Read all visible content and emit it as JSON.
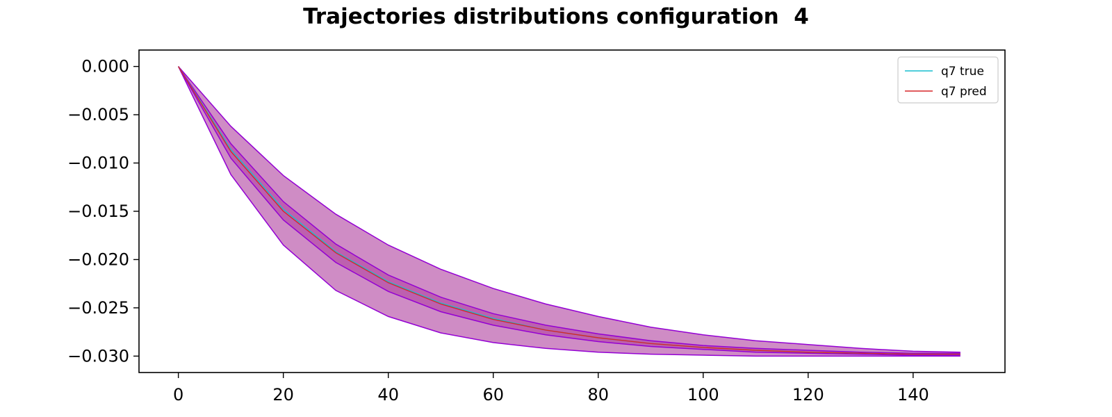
{
  "chart_data": {
    "type": "line",
    "title": "Trajectories distributions configuration  4",
    "xlabel": "",
    "ylabel": "",
    "xlim": [
      -7.5,
      157.5
    ],
    "ylim": [
      -0.0317,
      0.0017
    ],
    "x_ticks": [
      0,
      20,
      40,
      60,
      80,
      100,
      120,
      140
    ],
    "x_tick_labels": [
      "0",
      "20",
      "40",
      "60",
      "80",
      "100",
      "120",
      "140"
    ],
    "y_ticks": [
      0.0,
      -0.005,
      -0.01,
      -0.015,
      -0.02,
      -0.025,
      -0.03
    ],
    "y_tick_labels": [
      "0.000",
      "−0.005",
      "−0.010",
      "−0.015",
      "−0.020",
      "−0.025",
      "−0.030"
    ],
    "grid": false,
    "legend_position": "top-right",
    "x": [
      0,
      10,
      20,
      30,
      40,
      50,
      60,
      70,
      80,
      90,
      100,
      110,
      120,
      130,
      140,
      149
    ],
    "series": [
      {
        "name": "q7 true",
        "color": "#17becf",
        "values": [
          0.0,
          -0.0086,
          -0.0148,
          -0.0192,
          -0.0223,
          -0.0245,
          -0.0261,
          -0.0273,
          -0.0281,
          -0.0287,
          -0.0291,
          -0.0294,
          -0.0296,
          -0.0297,
          -0.0298,
          -0.0298
        ]
      },
      {
        "name": "q7 pred",
        "color": "#d62728",
        "values": [
          0.0,
          -0.0088,
          -0.015,
          -0.0193,
          -0.0224,
          -0.0246,
          -0.0262,
          -0.0273,
          -0.0281,
          -0.0287,
          -0.0291,
          -0.0294,
          -0.0296,
          -0.0297,
          -0.0298,
          -0.0298
        ]
      }
    ],
    "bands": [
      {
        "color": "#9a0f86",
        "opacity": 0.48,
        "edge_color": "#9400d3",
        "upper": [
          0.0,
          -0.0062,
          -0.0113,
          -0.0153,
          -0.0185,
          -0.021,
          -0.023,
          -0.0246,
          -0.0259,
          -0.027,
          -0.0278,
          -0.0284,
          -0.0288,
          -0.0292,
          -0.0295,
          -0.0296
        ],
        "lower": [
          0.0,
          -0.0112,
          -0.0185,
          -0.0232,
          -0.0259,
          -0.0276,
          -0.0286,
          -0.0292,
          -0.0296,
          -0.0298,
          -0.0299,
          -0.03,
          -0.03,
          -0.03,
          -0.03,
          -0.03
        ]
      },
      {
        "color": "#9a0f86",
        "opacity": 0.35,
        "edge_color": "#9400d3",
        "upper": [
          0.0,
          -0.008,
          -0.014,
          -0.0184,
          -0.0216,
          -0.0239,
          -0.0256,
          -0.0268,
          -0.0277,
          -0.0284,
          -0.0289,
          -0.0292,
          -0.0294,
          -0.0296,
          -0.0297,
          -0.0297
        ],
        "lower": [
          0.0,
          -0.0095,
          -0.0159,
          -0.0203,
          -0.0233,
          -0.0254,
          -0.0268,
          -0.0278,
          -0.0285,
          -0.029,
          -0.0293,
          -0.0296,
          -0.0297,
          -0.0298,
          -0.0299,
          -0.0299
        ]
      }
    ]
  }
}
